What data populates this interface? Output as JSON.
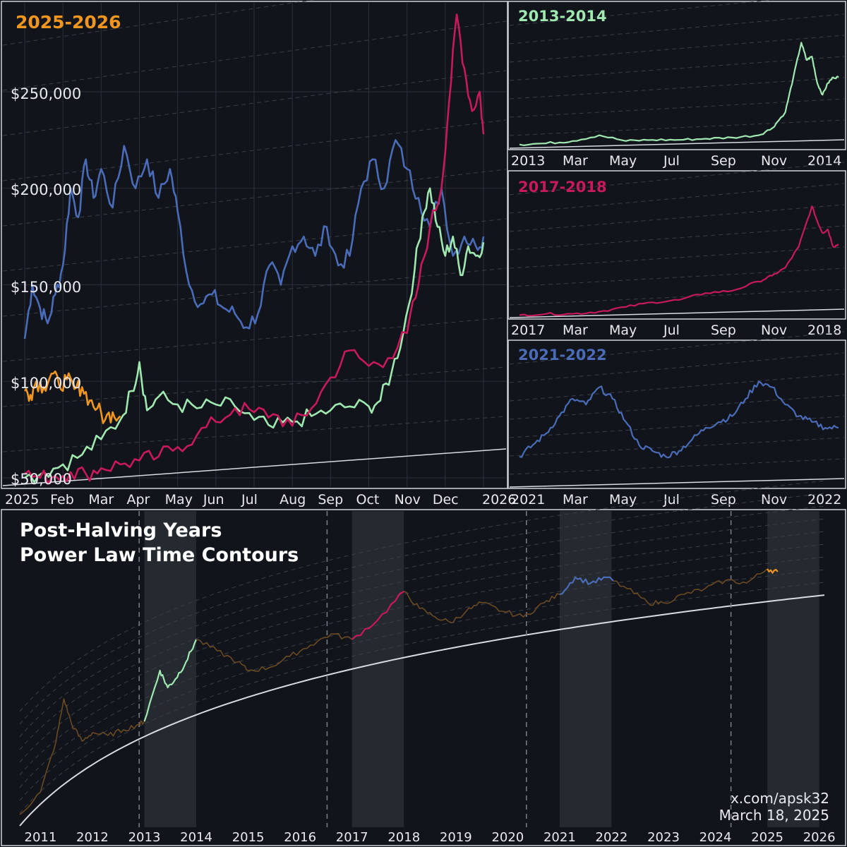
{
  "colors": {
    "background": "#11141b",
    "panel": "#11141b",
    "grid": "#2a2f38",
    "contour": "#3a3f48",
    "border": "#cfd3da",
    "text": "#e8eaed",
    "powerlaw": "#d8dbe2",
    "shade": "#252930",
    "y2025": "#f0961e",
    "y2013": "#9fe8b0",
    "y2017": "#c8195c",
    "y2021": "#4a6cb8",
    "base": "#6b4a22"
  },
  "main_panel": {
    "title": "2025-2026",
    "y_ticks": [
      "$50,000",
      "$100,000",
      "$150,000",
      "$200,000",
      "$250,000"
    ],
    "x_ticks": [
      "2025",
      "Feb",
      "Mar",
      "Apr",
      "May",
      "Jun",
      "Jul",
      "Aug",
      "Sep",
      "Oct",
      "Nov",
      "Dec",
      "2026"
    ]
  },
  "side_panels": [
    {
      "title": "2013-2014",
      "color_key": "y2013",
      "x_ticks": [
        "2013",
        "Mar",
        "May",
        "Jul",
        "Sep",
        "Nov",
        "2014"
      ]
    },
    {
      "title": "2017-2018",
      "color_key": "y2017",
      "x_ticks": [
        "2017",
        "Mar",
        "May",
        "Jul",
        "Sep",
        "Nov",
        "2018"
      ]
    },
    {
      "title": "2021-2022",
      "color_key": "y2021",
      "x_ticks": [
        "2021",
        "Mar",
        "May",
        "Jul",
        "Sep",
        "Nov",
        "2022"
      ]
    }
  ],
  "bottom_panel": {
    "title_line1": "Post-Halving Years",
    "title_line2": "Power Law Time Contours",
    "x_ticks": [
      "2011",
      "2012",
      "2013",
      "2014",
      "2015",
      "2016",
      "2017",
      "2018",
      "2019",
      "2020",
      "2021",
      "2022",
      "2023",
      "2024",
      "2025",
      "2026"
    ],
    "halving_years": [
      2012.9,
      2016.52,
      2020.36,
      2024.3
    ],
    "shaded_years": [
      [
        2013,
        2014
      ],
      [
        2017,
        2018
      ],
      [
        2021,
        2022
      ],
      [
        2025,
        2026
      ]
    ]
  },
  "credit": {
    "handle": "x.com/apsk32",
    "date": "March 18, 2025"
  },
  "chart_data": [
    {
      "type": "line",
      "panel": "2025-2026",
      "x_unit": "months since Jan 1 (scaled to 2025)",
      "ylim": [
        50000,
        300000
      ],
      "series": [
        {
          "name": "2025-2026",
          "color_key": "y2025",
          "x": [
            0,
            0.15,
            0.3,
            0.5,
            0.7,
            0.9,
            1.1,
            1.3,
            1.5,
            1.7,
            1.9,
            2.1,
            2.3,
            2.5
          ],
          "y": [
            95000,
            93000,
            100000,
            97000,
            104000,
            98000,
            101000,
            96000,
            97000,
            90000,
            86000,
            80000,
            84000,
            82000
          ]
        },
        {
          "name": "2013-2014",
          "color_key": "y2013",
          "x": [
            0,
            0.5,
            1,
            1.5,
            2,
            2.5,
            2.8,
            3,
            3.2,
            3.5,
            4,
            4.5,
            5,
            5.5,
            6,
            6.5,
            7,
            7.5,
            8,
            8.5,
            9,
            9.3,
            9.6,
            9.9,
            10.2,
            10.4,
            10.6,
            10.8,
            11,
            11.2,
            11.4,
            11.6,
            11.8,
            12
          ],
          "y": [
            50000,
            53000,
            57000,
            62000,
            70000,
            80000,
            95000,
            110000,
            85000,
            92000,
            88000,
            86000,
            88000,
            87000,
            80000,
            76000,
            79000,
            82000,
            85000,
            87000,
            87000,
            90000,
            105000,
            125000,
            158000,
            185000,
            200000,
            180000,
            165000,
            175000,
            155000,
            170000,
            165000,
            172000
          ]
        },
        {
          "name": "2017-2018",
          "color_key": "y2017",
          "x": [
            0,
            0.4,
            0.8,
            1.2,
            1.6,
            2,
            2.5,
            3,
            3.5,
            4,
            4.5,
            5,
            5.5,
            6,
            6.5,
            7,
            7.5,
            8,
            8.5,
            9,
            9.5,
            10,
            10.3,
            10.6,
            10.9,
            11.1,
            11.3,
            11.5,
            11.7,
            11.9,
            12
          ],
          "y": [
            52000,
            50000,
            51000,
            53000,
            52000,
            55000,
            57000,
            59000,
            61000,
            66000,
            72000,
            79000,
            86000,
            84000,
            83000,
            77000,
            86000,
            102000,
            116000,
            108000,
            112000,
            125000,
            150000,
            180000,
            200000,
            245000,
            290000,
            262000,
            240000,
            250000,
            228000
          ]
        },
        {
          "name": "2021-2022",
          "color_key": "y2021",
          "x": [
            0,
            0.2,
            0.4,
            0.6,
            0.8,
            1,
            1.2,
            1.4,
            1.6,
            1.8,
            2,
            2.3,
            2.6,
            2.9,
            3.2,
            3.5,
            3.8,
            4,
            4.3,
            4.6,
            4.9,
            5.2,
            5.5,
            5.8,
            6.1,
            6.4,
            6.7,
            7,
            7.3,
            7.6,
            7.9,
            8.2,
            8.5,
            8.8,
            9.1,
            9.4,
            9.7,
            10,
            10.3,
            10.6,
            10.9,
            11.2,
            11.5,
            11.8,
            12
          ],
          "y": [
            122000,
            150000,
            138000,
            130000,
            145000,
            160000,
            200000,
            185000,
            215000,
            195000,
            210000,
            190000,
            222000,
            200000,
            215000,
            195000,
            210000,
            188000,
            150000,
            140000,
            145000,
            138000,
            135000,
            128000,
            135000,
            160000,
            150000,
            170000,
            175000,
            165000,
            180000,
            160000,
            165000,
            200000,
            215000,
            200000,
            225000,
            210000,
            195000,
            180000,
            200000,
            165000,
            175000,
            170000,
            175000
          ]
        }
      ]
    },
    {
      "type": "line",
      "panel": "2013-2014",
      "x": [
        0,
        1,
        2,
        3,
        4,
        5,
        6,
        7,
        8,
        9,
        9.5,
        10,
        10.3,
        10.6,
        10.8,
        11,
        11.2,
        11.4,
        11.6,
        11.8,
        12
      ],
      "y": [
        0.02,
        0.03,
        0.05,
        0.1,
        0.05,
        0.06,
        0.06,
        0.07,
        0.08,
        0.1,
        0.16,
        0.3,
        0.6,
        0.9,
        0.75,
        0.78,
        0.55,
        0.45,
        0.55,
        0.6,
        0.6
      ]
    },
    {
      "type": "line",
      "panel": "2017-2018",
      "x": [
        0,
        1,
        2,
        3,
        4,
        5,
        6,
        7,
        8,
        9,
        9.5,
        10,
        10.5,
        11,
        11.2,
        11.4,
        11.6,
        11.8,
        12
      ],
      "y": [
        0.01,
        0.02,
        0.02,
        0.04,
        0.08,
        0.12,
        0.14,
        0.2,
        0.22,
        0.3,
        0.35,
        0.42,
        0.6,
        0.95,
        0.82,
        0.72,
        0.75,
        0.6,
        0.62
      ]
    },
    {
      "type": "line",
      "panel": "2021-2022",
      "x": [
        0,
        0.5,
        1,
        1.5,
        2,
        2.5,
        3,
        3.5,
        4,
        4.5,
        5,
        5.5,
        6,
        6.5,
        7,
        7.5,
        8,
        8.5,
        9,
        9.5,
        10,
        10.5,
        11,
        11.5,
        12
      ],
      "y": [
        0.25,
        0.35,
        0.45,
        0.6,
        0.75,
        0.7,
        0.85,
        0.75,
        0.55,
        0.35,
        0.3,
        0.25,
        0.3,
        0.4,
        0.5,
        0.55,
        0.6,
        0.75,
        0.9,
        0.85,
        0.7,
        0.6,
        0.55,
        0.5,
        0.5
      ]
    },
    {
      "type": "line",
      "panel": "post-halving",
      "x_unit": "year",
      "series": [
        {
          "name": "history",
          "x": [
            2010.6,
            2011.0,
            2011.3,
            2011.45,
            2011.6,
            2011.8,
            2012.0,
            2012.3,
            2012.6,
            2012.9,
            2013.0,
            2013.3,
            2013.45,
            2013.6,
            2013.8,
            2014.0,
            2014.4,
            2014.8,
            2015.0,
            2015.4,
            2015.8,
            2016.2,
            2016.6,
            2017.0,
            2017.5,
            2018.0,
            2018.3,
            2018.6,
            2018.9,
            2019.2,
            2019.5,
            2019.9,
            2020.3,
            2020.7,
            2021.0,
            2021.3,
            2021.6,
            2021.9,
            2022.3,
            2022.7,
            2023.0,
            2023.4,
            2023.8,
            2024.2,
            2024.6,
            2025.0,
            2025.2
          ],
          "y": [
            0.04,
            0.12,
            0.3,
            0.45,
            0.36,
            0.3,
            0.33,
            0.32,
            0.34,
            0.36,
            0.37,
            0.55,
            0.49,
            0.52,
            0.58,
            0.66,
            0.62,
            0.58,
            0.55,
            0.56,
            0.6,
            0.64,
            0.68,
            0.66,
            0.73,
            0.83,
            0.77,
            0.74,
            0.72,
            0.76,
            0.79,
            0.76,
            0.74,
            0.79,
            0.82,
            0.88,
            0.86,
            0.88,
            0.84,
            0.79,
            0.79,
            0.82,
            0.84,
            0.87,
            0.86,
            0.91,
            0.9
          ]
        }
      ]
    }
  ]
}
